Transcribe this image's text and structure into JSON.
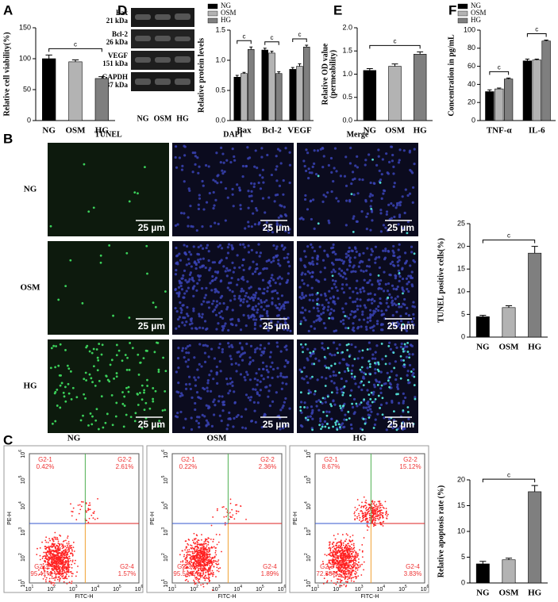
{
  "panel_labels": [
    "A",
    "D",
    "E",
    "F",
    "B",
    "C"
  ],
  "blot": {
    "rows": [
      [
        "Bax",
        "21 kDa"
      ],
      [
        "Bcl-2",
        "26 kDa"
      ],
      [
        "VEGF",
        "151 kDa"
      ],
      [
        "GAPDH",
        "37 kDa"
      ]
    ],
    "lanes": [
      "NG",
      "OSM",
      "HG"
    ]
  },
  "microscopy": {
    "columns": [
      "TUNEL",
      "DAPI",
      "Merge"
    ],
    "rows": [
      "NG",
      "OSM",
      "HG"
    ],
    "scale_bar": "25 µm"
  },
  "flow": {
    "ylabel": "PE-H",
    "xlabel": "FITC-H",
    "tick_base": "10",
    "tick_exponents": [
      "1",
      "2",
      "3",
      "4",
      "5",
      "6"
    ],
    "plots": [
      {
        "title": "NG",
        "quadrants": [
          [
            "G2-1",
            "0.42%"
          ],
          [
            "G2-2",
            "2.61%"
          ],
          [
            "G2-3",
            "95.41%"
          ],
          [
            "G2-4",
            "1.57%"
          ]
        ]
      },
      {
        "title": "OSM",
        "quadrants": [
          [
            "G2-1",
            "0.22%"
          ],
          [
            "G2-2",
            "2.36%"
          ],
          [
            "G2-3",
            "95.54%"
          ],
          [
            "G2-4",
            "1.89%"
          ]
        ]
      },
      {
        "title": "HG",
        "quadrants": [
          [
            "G2-1",
            "8.67%"
          ],
          [
            "G2-2",
            "15.12%"
          ],
          [
            "G2-3",
            "72.38%"
          ],
          [
            "G2-4",
            "3.83%"
          ]
        ]
      }
    ]
  },
  "chart_data": [
    {
      "type": "bar",
      "ylabel": "Relative cell viability(%)",
      "categories": [
        "NG",
        "OSM",
        "HG"
      ],
      "values": [
        100,
        95,
        68
      ],
      "errors": [
        6,
        3,
        3
      ],
      "colors": [
        "#000000",
        "#b3b3b3",
        "#7f7f7f"
      ],
      "ylim": [
        0,
        150
      ],
      "yticks": [
        0,
        50,
        100,
        150
      ],
      "annotations": [
        {
          "text": "c",
          "between": [
            "NG",
            "HG"
          ]
        }
      ]
    },
    {
      "type": "bar",
      "ylabel": "Relative protein levels",
      "categories": [
        "Bax",
        "Bcl-2",
        "VEGF"
      ],
      "series": [
        {
          "name": "NG",
          "color": "#000000",
          "values": [
            0.72,
            1.17,
            0.85
          ],
          "errors": [
            0.03,
            0.03,
            0.03
          ]
        },
        {
          "name": "OSM",
          "color": "#b3b3b3",
          "values": [
            0.78,
            1.12,
            0.9
          ],
          "errors": [
            0.02,
            0.03,
            0.04
          ]
        },
        {
          "name": "HG",
          "color": "#7f7f7f",
          "values": [
            1.18,
            0.78,
            1.22
          ],
          "errors": [
            0.04,
            0.03,
            0.03
          ]
        }
      ],
      "ylim": [
        0,
        1.5
      ],
      "yticks": [
        {
          "value": 0,
          "label": "0.0"
        },
        0.5,
        {
          "value": 1,
          "label": "1.0"
        },
        1.5
      ],
      "legend": "upper left",
      "annotations": [
        {
          "text": "c",
          "category": "Bax",
          "between": [
            "NG",
            "HG"
          ]
        },
        {
          "text": "c",
          "category": "Bcl-2",
          "between": [
            "NG",
            "HG"
          ]
        },
        {
          "text": "c",
          "category": "VEGF",
          "between": [
            "NG",
            "HG"
          ]
        }
      ]
    },
    {
      "type": "bar",
      "ylabel": [
        "Relative OD value",
        "(permeability)"
      ],
      "categories": [
        "NG",
        "OSM",
        "HG"
      ],
      "values": [
        1.08,
        1.17,
        1.43
      ],
      "errors": [
        0.04,
        0.05,
        0.05
      ],
      "colors": [
        "#000000",
        "#b3b3b3",
        "#7f7f7f"
      ],
      "ylim": [
        0,
        2
      ],
      "yticks": [
        {
          "value": 0,
          "label": "0.0"
        },
        0.5,
        {
          "value": 1,
          "label": "1.0"
        },
        1.5,
        {
          "value": 2,
          "label": "2.0"
        }
      ],
      "annotations": [
        {
          "text": "c",
          "between": [
            "NG",
            "HG"
          ]
        }
      ]
    },
    {
      "type": "bar",
      "ylabel": "Concentration in pg/mL",
      "categories": [
        "TNF-α",
        "IL-6"
      ],
      "series": [
        {
          "name": "NG",
          "color": "#000000",
          "values": [
            32,
            66
          ],
          "errors": [
            2,
            2
          ]
        },
        {
          "name": "OSM",
          "color": "#b3b3b3",
          "values": [
            35,
            67
          ],
          "errors": [
            1,
            1
          ]
        },
        {
          "name": "HG",
          "color": "#7f7f7f",
          "values": [
            46,
            88
          ],
          "errors": [
            1,
            1
          ]
        }
      ],
      "ylim": [
        0,
        100
      ],
      "yticks": [
        0,
        20,
        40,
        60,
        80,
        100
      ],
      "legend": "upper left",
      "annotations": [
        {
          "text": "c",
          "category": "TNF-α",
          "between": [
            "NG",
            "HG"
          ]
        },
        {
          "text": "c",
          "category": "IL-6",
          "between": [
            "NG",
            "HG"
          ]
        }
      ]
    },
    {
      "type": "bar",
      "ylabel": "TUNEL positive cells(%)",
      "categories": [
        "NG",
        "OSM",
        "HG"
      ],
      "values": [
        4.5,
        6.5,
        18.5
      ],
      "errors": [
        0.3,
        0.4,
        1.5
      ],
      "colors": [
        "#000000",
        "#b3b3b3",
        "#7f7f7f"
      ],
      "ylim": [
        0,
        25
      ],
      "yticks": [
        0,
        5,
        10,
        15,
        20,
        25
      ],
      "annotations": [
        {
          "text": "c",
          "between": [
            "NG",
            "HG"
          ]
        }
      ]
    },
    {
      "type": "bar",
      "ylabel": "Relative apoptosis rate (%)",
      "categories": [
        "NG",
        "OSM",
        "HG"
      ],
      "values": [
        3.7,
        4.5,
        17.7
      ],
      "errors": [
        0.5,
        0.3,
        1.2
      ],
      "colors": [
        "#000000",
        "#b3b3b3",
        "#7f7f7f"
      ],
      "ylim": [
        0,
        20
      ],
      "yticks": [
        0,
        5,
        10,
        15,
        20
      ],
      "annotations": [
        {
          "text": "c",
          "between": [
            "NG",
            "HG"
          ]
        }
      ]
    }
  ]
}
